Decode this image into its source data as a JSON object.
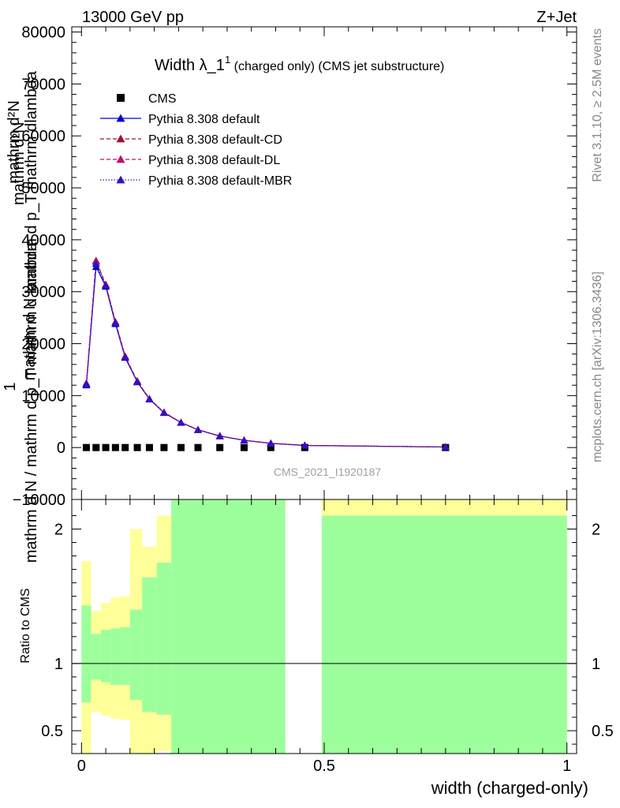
{
  "header": {
    "left_title": "13000 GeV pp",
    "right_title": "Z+Jet"
  },
  "side": {
    "rivet_label": "Rivet 3.1.10, ≥ 2.5M events",
    "mcplots_label": "mcplots.cern.ch [arXiv:1306.3436]"
  },
  "chart_data": [
    {
      "type": "line",
      "title_main": "Width λ_1",
      "title_sup": "1",
      "title_rest": " (charged only) (CMS jet substructure)",
      "watermark": "CMS_2021_I1920187",
      "ylabel_lines": [
        "mathrm d²N",
        "mathrm d²N",
        "mathrm d p_T mathrm dlambda",
        "mathrm d N",
        "1",
        "mathrm d N / mathrm d p_T mathrm d lambda"
      ],
      "xlim": [
        -0.02,
        1.02
      ],
      "ylim": [
        -10000,
        81000
      ],
      "yticks": [
        -10000,
        0,
        10000,
        20000,
        30000,
        40000,
        50000,
        60000,
        70000,
        80000
      ],
      "ytick_labels": [
        "−10000",
        "0",
        "10000",
        "20000",
        "30000",
        "40000",
        "50000",
        "60000",
        "70000",
        "80000"
      ],
      "legend_position": "top-left",
      "series": [
        {
          "name": "CMS",
          "color": "#000000",
          "marker": "square",
          "x": [
            0.01,
            0.03,
            0.05,
            0.07,
            0.09,
            0.115,
            0.14,
            0.17,
            0.205,
            0.24,
            0.285,
            0.335,
            0.39,
            0.46,
            0.75
          ],
          "y": [
            0,
            0,
            0,
            0,
            0,
            0,
            0,
            0,
            0,
            0,
            0,
            0,
            0,
            0,
            0
          ]
        },
        {
          "name": "Pythia 8.308 default",
          "color": "#0000dd",
          "dash": "",
          "marker": "triangle",
          "x": [
            0.01,
            0.03,
            0.05,
            0.07,
            0.09,
            0.115,
            0.14,
            0.17,
            0.205,
            0.24,
            0.285,
            0.335,
            0.39,
            0.46,
            0.75
          ],
          "y": [
            12000,
            34800,
            31000,
            23800,
            17300,
            12600,
            9300,
            6700,
            4800,
            3400,
            2200,
            1400,
            800,
            400,
            100
          ]
        },
        {
          "name": "Pythia 8.308 default-CD",
          "color": "#a01030",
          "dash": "5,3",
          "marker": "triangle",
          "x": [
            0.01,
            0.03,
            0.05,
            0.07,
            0.09,
            0.115,
            0.14,
            0.17,
            0.205,
            0.24,
            0.285,
            0.335,
            0.39,
            0.46,
            0.75
          ],
          "y": [
            12400,
            36000,
            31400,
            24200,
            17600,
            12800,
            9400,
            6800,
            4850,
            3450,
            2250,
            1400,
            820,
            420,
            100
          ]
        },
        {
          "name": "Pythia 8.308 default-DL",
          "color": "#c0106a",
          "dash": "5,3",
          "marker": "triangle",
          "x": [
            0.01,
            0.03,
            0.05,
            0.07,
            0.09,
            0.115,
            0.14,
            0.17,
            0.205,
            0.24,
            0.285,
            0.335,
            0.39,
            0.46,
            0.75
          ],
          "y": [
            12300,
            35800,
            31300,
            24100,
            17500,
            12700,
            9350,
            6750,
            4820,
            3420,
            2230,
            1400,
            810,
            410,
            100
          ]
        },
        {
          "name": "Pythia 8.308 default-MBR",
          "color": "#3010c8",
          "dash": "1.5,2",
          "marker": "triangle",
          "x": [
            0.01,
            0.03,
            0.05,
            0.07,
            0.09,
            0.115,
            0.14,
            0.17,
            0.205,
            0.24,
            0.285,
            0.335,
            0.39,
            0.46,
            0.75
          ],
          "y": [
            12200,
            35400,
            31200,
            24000,
            17400,
            12650,
            9320,
            6720,
            4810,
            3410,
            2220,
            1400,
            805,
            405,
            100
          ]
        }
      ]
    },
    {
      "type": "area",
      "ylabel": "Ratio to CMS",
      "xlabel": "width (charged-only)",
      "xlim": [
        -0.02,
        1.02
      ],
      "ylim": [
        0.33,
        2.22
      ],
      "yticks": [
        0.5,
        1,
        2
      ],
      "ytick_labels": [
        "0.5",
        "1",
        "2"
      ],
      "xticks": [
        0,
        0.5,
        1
      ],
      "xtick_labels": [
        "0",
        "0.5",
        "1"
      ],
      "reference_line": 1,
      "bands": [
        {
          "x0": 0.0,
          "x1": 0.02,
          "g_lo": 0.71,
          "g_hi": 1.43,
          "y_lo": 0.33,
          "y_hi": 1.76
        },
        {
          "x0": 0.02,
          "x1": 0.04,
          "g_lo": 0.88,
          "g_hi": 1.22,
          "y_lo": 0.64,
          "y_hi": 1.39
        },
        {
          "x0": 0.04,
          "x1": 0.06,
          "g_lo": 0.86,
          "g_hi": 1.25,
          "y_lo": 0.61,
          "y_hi": 1.45
        },
        {
          "x0": 0.06,
          "x1": 0.08,
          "g_lo": 0.84,
          "g_hi": 1.26,
          "y_lo": 0.59,
          "y_hi": 1.49
        },
        {
          "x0": 0.08,
          "x1": 0.1,
          "g_lo": 0.84,
          "g_hi": 1.27,
          "y_lo": 0.58,
          "y_hi": 1.5
        },
        {
          "x0": 0.1,
          "x1": 0.125,
          "g_lo": 0.73,
          "g_hi": 1.4,
          "y_lo": 0.33,
          "y_hi": 2.0
        },
        {
          "x0": 0.125,
          "x1": 0.155,
          "g_lo": 0.64,
          "g_hi": 1.64,
          "y_lo": 0.33,
          "y_hi": 1.87
        },
        {
          "x0": 0.155,
          "x1": 0.185,
          "g_lo": 0.62,
          "g_hi": 1.75,
          "y_lo": 0.35,
          "y_hi": 2.1
        },
        {
          "x0": 0.185,
          "x1": 0.42,
          "g_lo": 0.33,
          "g_hi": 2.22,
          "y_lo": 0.33,
          "y_hi": 2.22
        },
        {
          "x0": 0.495,
          "x1": 1.0,
          "g_lo": 0.33,
          "g_hi": 2.1,
          "y_lo": 0.33,
          "y_hi": 2.22
        }
      ],
      "green": "#9cff9c",
      "yellow": "#ffff99"
    }
  ]
}
